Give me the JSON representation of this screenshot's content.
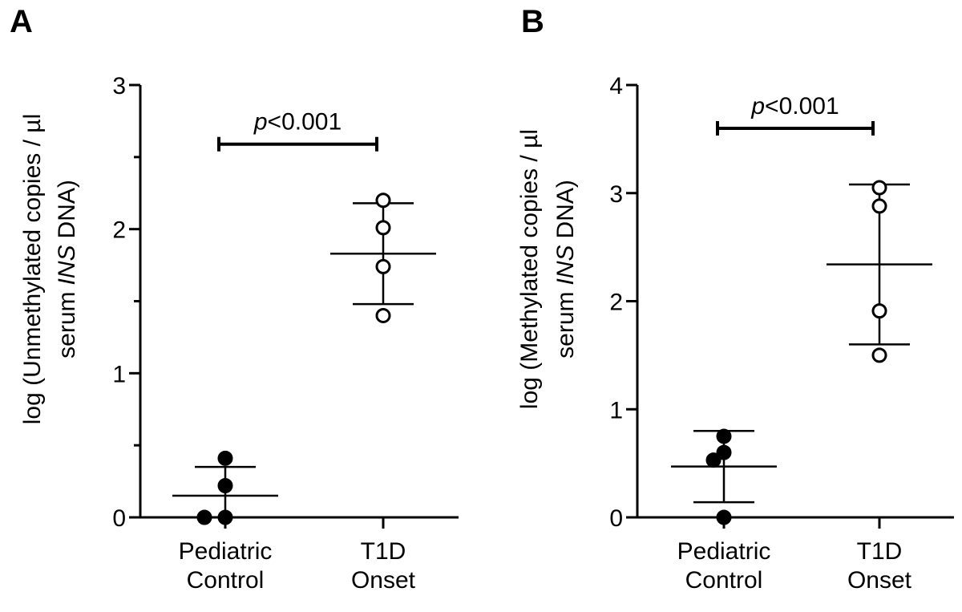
{
  "chart_data": [
    {
      "type": "dot_plot",
      "panel": "A",
      "ylabel": [
        "log (Unmethylated copies / µl",
        "serum",
        "INS",
        "DNA)"
      ],
      "annotation": [
        "p",
        "<0.001"
      ],
      "ylim": [
        0,
        3
      ],
      "yticks": [
        0,
        1,
        2,
        3
      ],
      "yminor": [
        0.5,
        1.5,
        2.5
      ],
      "groups": [
        {
          "category": "Pediatric Control",
          "filled": true,
          "values": [
            0,
            0,
            0.22,
            0.41
          ],
          "mean": 0.15,
          "sd": 0.2
        },
        {
          "category": "T1D Onset",
          "filled": false,
          "values": [
            2.2,
            2.01,
            1.74,
            1.4
          ],
          "mean": 1.83,
          "sd": 0.35
        }
      ]
    },
    {
      "type": "dot_plot",
      "panel": "B",
      "ylabel": [
        "log (Methylated copies / µl",
        "serum",
        "INS",
        "DNA)"
      ],
      "annotation": [
        "p",
        "<0.001"
      ],
      "ylim": [
        0,
        4
      ],
      "yticks": [
        0,
        1,
        2,
        3,
        4
      ],
      "groups": [
        {
          "category": "Pediatric Control",
          "filled": true,
          "values": [
            0,
            0.6,
            0.53,
            0.75
          ],
          "mean": 0.47,
          "sd": 0.33
        },
        {
          "category": "T1D Onset",
          "filled": false,
          "values": [
            2.88,
            3.05,
            1.91,
            1.5
          ],
          "mean": 2.34,
          "sd": 0.74
        }
      ]
    }
  ]
}
